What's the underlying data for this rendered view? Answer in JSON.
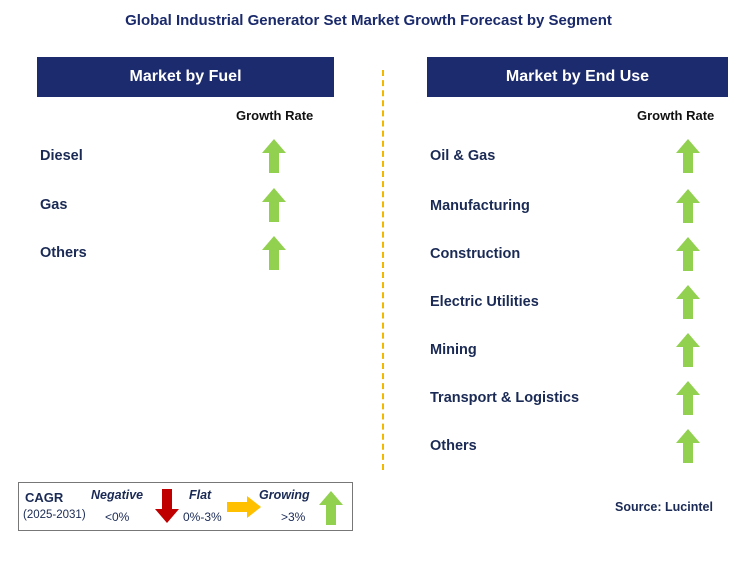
{
  "title": "Global Industrial Generator Set Market Growth Forecast by Segment",
  "colors": {
    "header": "#1c2a6e",
    "growing": "#92d050",
    "negative": "#c00000",
    "flat": "#ffc000",
    "divider": "#f2b800"
  },
  "left": {
    "header": "Market by Fuel",
    "growth_label": "Growth Rate",
    "items": [
      {
        "label": "Diesel",
        "trend": "growing"
      },
      {
        "label": "Gas",
        "trend": "growing"
      },
      {
        "label": "Others",
        "trend": "growing"
      }
    ]
  },
  "right": {
    "header": "Market by End Use",
    "growth_label": "Growth Rate",
    "items": [
      {
        "label": "Oil & Gas",
        "trend": "growing"
      },
      {
        "label": "Manufacturing",
        "trend": "growing"
      },
      {
        "label": "Construction",
        "trend": "growing"
      },
      {
        "label": "Electric Utilities",
        "trend": "growing"
      },
      {
        "label": "Mining",
        "trend": "growing"
      },
      {
        "label": "Transport & Logistics",
        "trend": "growing"
      },
      {
        "label": "Others",
        "trend": "growing"
      }
    ]
  },
  "legend": {
    "cagr": "CAGR",
    "period": "(2025-2031)",
    "negative": "Negative",
    "negative_range": "<0%",
    "flat": "Flat",
    "flat_range": "0%-3%",
    "growing": "Growing",
    "growing_range": ">3%"
  },
  "source": "Source: Lucintel"
}
